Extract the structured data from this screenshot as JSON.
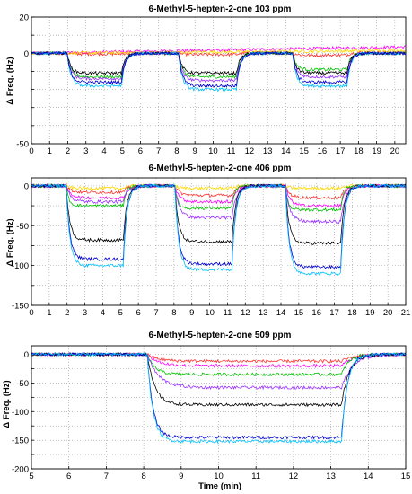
{
  "chart_data": [
    {
      "type": "line",
      "title": "6-Methyl-5-hepten-2-one 103 ppm",
      "ylabel": "Δ Freq. (Hz)",
      "xlabel": "",
      "xlim": [
        0,
        20.6
      ],
      "ylim": [
        -50,
        20
      ],
      "xticks": [
        "0",
        "1",
        "2",
        "3",
        "4",
        "5",
        "6",
        "7",
        "8",
        "9",
        "10",
        "11",
        "12",
        "13",
        "14",
        "15",
        "16",
        "17",
        "18",
        "19",
        "20"
      ],
      "yticks": [
        "20",
        "0",
        "-50"
      ],
      "grid": true,
      "exposures": [
        [
          2,
          5
        ],
        [
          8.1,
          11.3
        ],
        [
          14.4,
          17.4
        ]
      ],
      "series": [
        {
          "color": "#ff00ff",
          "levels": [
            0,
            0,
            0
          ],
          "drift": 3.5,
          "tau": 0.25
        },
        {
          "color": "#ff3333",
          "levels": [
            -0.5,
            -1,
            -1.5
          ],
          "drift": 0.5,
          "tau": 0.25
        },
        {
          "color": "#ffd700",
          "levels": [
            0,
            0,
            0
          ],
          "drift": 1.5,
          "tau": 0.25
        },
        {
          "color": "#00c000",
          "levels": [
            -13,
            -13,
            -9
          ],
          "drift": 0,
          "tau": 0.2
        },
        {
          "color": "#9b30ff",
          "levels": [
            -14,
            -15,
            -13
          ],
          "drift": 0,
          "tau": 0.2
        },
        {
          "color": "#000000",
          "levels": [
            -11,
            -11,
            -11
          ],
          "drift": 0,
          "tau": 0.2
        },
        {
          "color": "#00bfff",
          "levels": [
            -18,
            -20,
            -18
          ],
          "drift": 0,
          "tau": 0.2
        },
        {
          "color": "#0000cd",
          "levels": [
            -16,
            -18,
            -16
          ],
          "drift": 0,
          "tau": 0.2
        }
      ]
    },
    {
      "type": "line",
      "title": "6-Methyl-5-hepten-2-one 406 ppm",
      "ylabel": "Δ Freq. (Hz)",
      "xlabel": "",
      "xlim": [
        0,
        21
      ],
      "ylim": [
        -150,
        10
      ],
      "xticks": [
        "0",
        "1",
        "2",
        "3",
        "4",
        "5",
        "6",
        "7",
        "8",
        "9",
        "10",
        "11",
        "12",
        "13",
        "14",
        "15",
        "16",
        "17",
        "18",
        "19",
        "20",
        "21"
      ],
      "yticks": [
        "0",
        "-50",
        "-100",
        "-150"
      ],
      "grid": true,
      "exposures": [
        [
          2,
          5.2
        ],
        [
          8.1,
          11.3
        ],
        [
          14.3,
          17.4
        ]
      ],
      "series": [
        {
          "color": "#ffd700",
          "levels": [
            -3,
            -3,
            -3
          ],
          "drift": 0,
          "tau": 0.2
        },
        {
          "color": "#ff3333",
          "levels": [
            -8,
            -12,
            -15
          ],
          "drift": 0,
          "tau": 0.25
        },
        {
          "color": "#ff00ff",
          "levels": [
            -15,
            -20,
            -25
          ],
          "drift": 0,
          "tau": 0.25
        },
        {
          "color": "#00c000",
          "levels": [
            -25,
            -28,
            -30
          ],
          "drift": 0,
          "tau": 0.15
        },
        {
          "color": "#9b30ff",
          "levels": [
            -20,
            -40,
            -45
          ],
          "drift": 0,
          "tau": 0.25
        },
        {
          "color": "#000000",
          "levels": [
            -68,
            -70,
            -72
          ],
          "drift": 0,
          "tau": 0.2
        },
        {
          "color": "#0000cd",
          "levels": [
            -92,
            -98,
            -102
          ],
          "drift": 0,
          "tau": 0.2
        },
        {
          "color": "#00bfff",
          "levels": [
            -100,
            -105,
            -110
          ],
          "drift": 0,
          "tau": 0.2
        }
      ]
    },
    {
      "type": "line",
      "title": "6-Methyl-5-hepten-2-one 509 ppm",
      "ylabel": "Δ Freq. (Hz)",
      "xlabel": "Time   (min)",
      "xlim": [
        5,
        15
      ],
      "ylim": [
        -200,
        15
      ],
      "xticks": [
        "5",
        "6",
        "7",
        "8",
        "9",
        "10",
        "11",
        "12",
        "13",
        "14",
        "15"
      ],
      "yticks": [
        "0",
        "-50",
        "-100",
        "-150",
        "-200"
      ],
      "grid": true,
      "exposures": [
        [
          8.1,
          13.3
        ]
      ],
      "series": [
        {
          "color": "#ff00ff",
          "levels": [
            -20
          ],
          "drift": 0,
          "tau": 0.3
        },
        {
          "color": "#ff3333",
          "levels": [
            -12
          ],
          "drift": 0,
          "tau": 0.3
        },
        {
          "color": "#00c000",
          "levels": [
            -35
          ],
          "drift": 0,
          "tau": 0.2
        },
        {
          "color": "#9b30ff",
          "levels": [
            -58
          ],
          "drift": 0,
          "tau": 0.3
        },
        {
          "color": "#000000",
          "levels": [
            -88
          ],
          "drift": 0,
          "tau": 0.2
        },
        {
          "color": "#0000cd",
          "levels": [
            -145
          ],
          "drift": 0,
          "tau": 0.15
        },
        {
          "color": "#00bfff",
          "levels": [
            -152
          ],
          "drift": 0,
          "tau": 0.15
        }
      ]
    }
  ]
}
